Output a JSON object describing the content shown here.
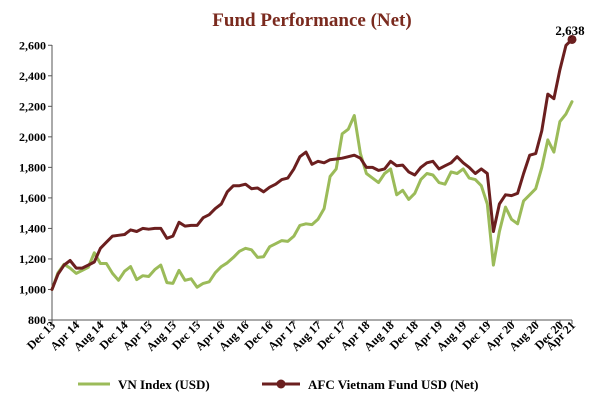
{
  "chart_data": {
    "type": "line",
    "title": "Fund Performance (Net)",
    "xlabel": "",
    "ylabel": "",
    "ylim": [
      800,
      2700
    ],
    "yticks": [
      800,
      1000,
      1200,
      1400,
      1600,
      1800,
      2000,
      2200,
      2400,
      2600
    ],
    "ytick_labels": [
      "800",
      "1,000",
      "1,200",
      "1,400",
      "1,600",
      "1,800",
      "2,000",
      "2,200",
      "2,400",
      "2,600"
    ],
    "x_start": "Dec 13",
    "x_end": "Apr 21",
    "x_tick_labels": [
      "Dec 13",
      "Apr 14",
      "Aug 14",
      "Dec 14",
      "Apr 15",
      "Aug 15",
      "Dec 15",
      "Apr 16",
      "Aug 16",
      "Dec 16",
      "Apr 17",
      "Aug 17",
      "Dec 17",
      "Apr 18",
      "Aug 18",
      "Dec 18",
      "Apr 19",
      "Aug 19",
      "Dec 19",
      "Apr 20",
      "Aug 20",
      "Dec 20",
      "Apr 21"
    ],
    "grid": false,
    "legend_position": "bottom",
    "end_label": "2,638",
    "series": [
      {
        "name": "VN Index (USD)",
        "color": "#9bbb59",
        "marker": false,
        "values": [
          1000,
          1110,
          1165,
          1140,
          1105,
          1125,
          1145,
          1240,
          1170,
          1170,
          1105,
          1060,
          1120,
          1150,
          1065,
          1090,
          1085,
          1130,
          1160,
          1045,
          1040,
          1125,
          1060,
          1070,
          1015,
          1040,
          1050,
          1110,
          1150,
          1175,
          1210,
          1250,
          1270,
          1260,
          1210,
          1215,
          1280,
          1300,
          1320,
          1315,
          1350,
          1420,
          1430,
          1425,
          1460,
          1530,
          1740,
          1790,
          2020,
          2050,
          2140,
          1890,
          1760,
          1730,
          1700,
          1760,
          1790,
          1620,
          1650,
          1590,
          1630,
          1720,
          1760,
          1750,
          1700,
          1690,
          1770,
          1760,
          1790,
          1730,
          1720,
          1680,
          1560,
          1160,
          1380,
          1540,
          1460,
          1430,
          1580,
          1620,
          1660,
          1800,
          1980,
          1900,
          2100,
          2150,
          2230
        ]
      },
      {
        "name": "AFC Vietnam Fund USD (Net)",
        "color": "#6b1f1f",
        "marker": true,
        "values": [
          1000,
          1100,
          1160,
          1190,
          1140,
          1140,
          1160,
          1180,
          1270,
          1310,
          1350,
          1355,
          1360,
          1390,
          1380,
          1400,
          1395,
          1400,
          1400,
          1335,
          1350,
          1440,
          1415,
          1420,
          1420,
          1470,
          1490,
          1530,
          1560,
          1640,
          1680,
          1680,
          1690,
          1660,
          1665,
          1640,
          1670,
          1690,
          1720,
          1730,
          1790,
          1870,
          1900,
          1820,
          1840,
          1830,
          1850,
          1855,
          1860,
          1870,
          1880,
          1860,
          1800,
          1800,
          1780,
          1790,
          1840,
          1810,
          1815,
          1770,
          1750,
          1800,
          1830,
          1840,
          1790,
          1810,
          1830,
          1870,
          1830,
          1800,
          1760,
          1790,
          1760,
          1380,
          1560,
          1620,
          1615,
          1630,
          1760,
          1880,
          1890,
          2040,
          2280,
          2250,
          2440,
          2600,
          2638
        ]
      }
    ]
  }
}
